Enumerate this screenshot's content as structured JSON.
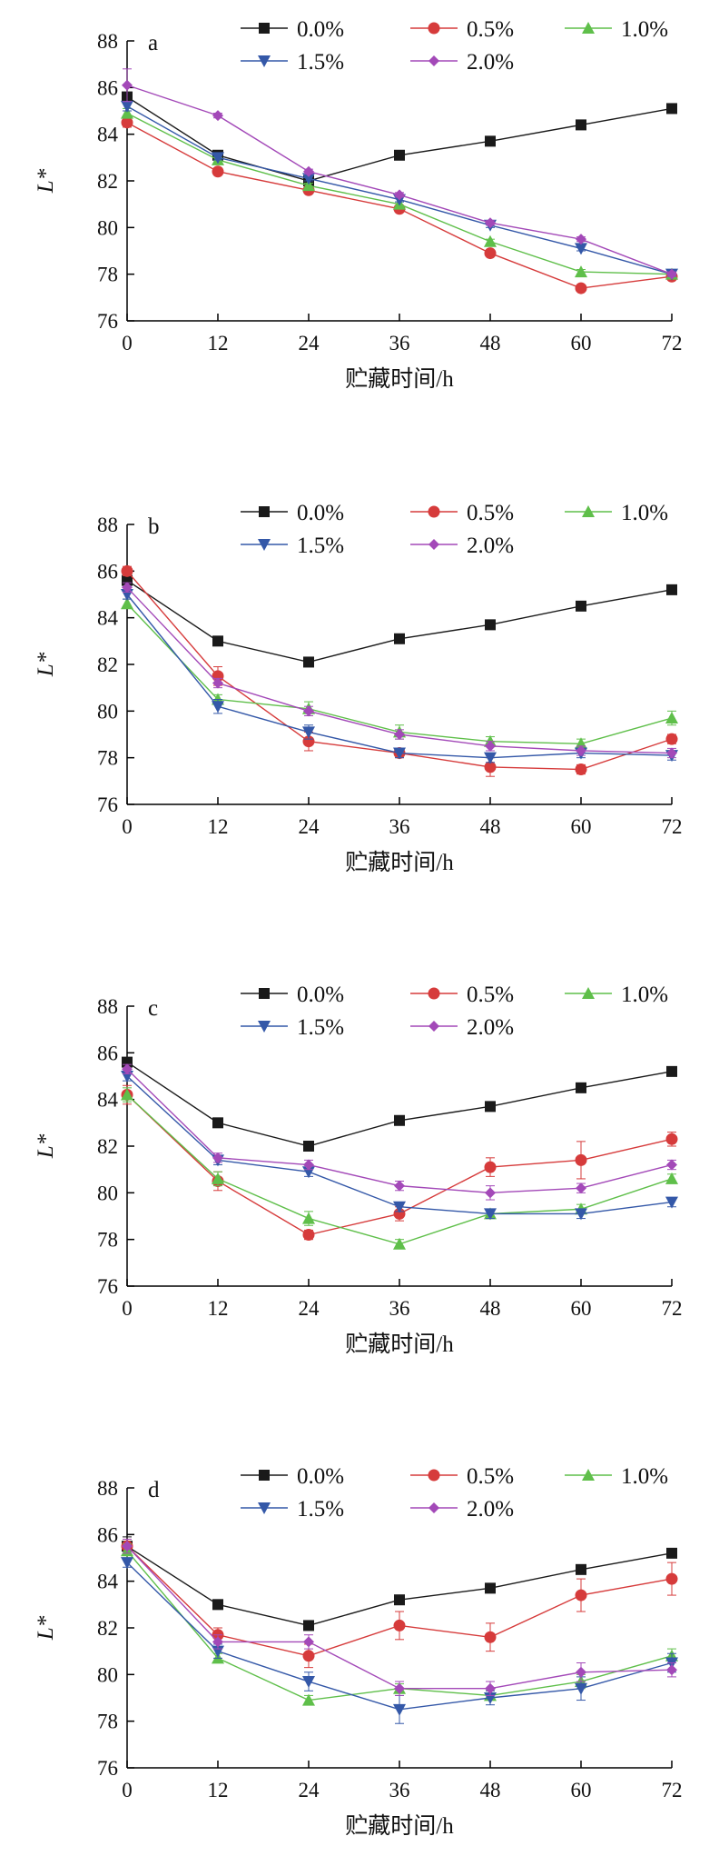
{
  "chart_data": [
    {
      "type": "line",
      "panel": "a",
      "xlabel": "贮藏时间/h",
      "ylabel": "L*",
      "x": [
        0,
        12,
        24,
        36,
        48,
        60,
        72
      ],
      "xticks": [
        "0",
        "12",
        "24",
        "36",
        "48",
        "60",
        "72"
      ],
      "yticks": [
        "76",
        "78",
        "80",
        "82",
        "84",
        "86",
        "88"
      ],
      "xlim": [
        0,
        72
      ],
      "ylim": [
        76,
        88
      ],
      "legend": "top",
      "series": [
        {
          "name": "0.0%",
          "color": "#1a1a1a",
          "marker": "square",
          "values": [
            85.6,
            83.1,
            82.0,
            83.1,
            83.7,
            84.4,
            85.1
          ],
          "errors": [
            0.2,
            0.1,
            0.1,
            0.1,
            0.1,
            0.1,
            0.1
          ]
        },
        {
          "name": "0.5%",
          "color": "#d63b3b",
          "marker": "circle",
          "values": [
            84.5,
            82.4,
            81.6,
            80.8,
            78.9,
            77.4,
            77.9
          ],
          "errors": [
            0.2,
            0.1,
            0.1,
            0.1,
            0.1,
            0.1,
            0.1
          ]
        },
        {
          "name": "1.0%",
          "color": "#5fbf4a",
          "marker": "triangle-up",
          "values": [
            84.9,
            82.9,
            81.8,
            81.0,
            79.4,
            78.1,
            78.0
          ],
          "errors": [
            0.2,
            0.1,
            0.1,
            0.1,
            0.1,
            0.1,
            0.1
          ]
        },
        {
          "name": "1.5%",
          "color": "#3458a8",
          "marker": "triangle-down",
          "values": [
            85.2,
            83.0,
            82.1,
            81.2,
            80.1,
            79.1,
            78.0
          ],
          "errors": [
            0.2,
            0.1,
            0.1,
            0.1,
            0.1,
            0.1,
            0.1
          ]
        },
        {
          "name": "2.0%",
          "color": "#a349b8",
          "marker": "diamond",
          "values": [
            86.1,
            84.8,
            82.4,
            81.4,
            80.2,
            79.5,
            78.0
          ],
          "errors": [
            0.7,
            0.1,
            0.1,
            0.1,
            0.1,
            0.1,
            0.1
          ]
        }
      ]
    },
    {
      "type": "line",
      "panel": "b",
      "xlabel": "贮藏时间/h",
      "ylabel": "L*",
      "x": [
        0,
        12,
        24,
        36,
        48,
        60,
        72
      ],
      "xticks": [
        "0",
        "12",
        "24",
        "36",
        "48",
        "60",
        "72"
      ],
      "yticks": [
        "76",
        "78",
        "80",
        "82",
        "84",
        "86",
        "88"
      ],
      "xlim": [
        0,
        72
      ],
      "ylim": [
        76,
        88
      ],
      "legend": "top",
      "series": [
        {
          "name": "0.0%",
          "color": "#1a1a1a",
          "marker": "square",
          "values": [
            85.6,
            83.0,
            82.1,
            83.1,
            83.7,
            84.5,
            85.2
          ],
          "errors": [
            0.2,
            0.1,
            0.1,
            0.1,
            0.1,
            0.1,
            0.1
          ]
        },
        {
          "name": "0.5%",
          "color": "#d63b3b",
          "marker": "circle",
          "values": [
            86.0,
            81.5,
            78.7,
            78.2,
            77.6,
            77.5,
            78.8
          ],
          "errors": [
            0.2,
            0.4,
            0.4,
            0.2,
            0.4,
            0.2,
            0.2
          ]
        },
        {
          "name": "1.0%",
          "color": "#5fbf4a",
          "marker": "triangle-up",
          "values": [
            84.6,
            80.5,
            80.1,
            79.1,
            78.7,
            78.6,
            79.7
          ],
          "errors": [
            0.2,
            0.2,
            0.3,
            0.3,
            0.2,
            0.2,
            0.3
          ]
        },
        {
          "name": "1.5%",
          "color": "#3458a8",
          "marker": "triangle-down",
          "values": [
            85.0,
            80.2,
            79.1,
            78.2,
            78.0,
            78.2,
            78.1
          ],
          "errors": [
            0.2,
            0.3,
            0.3,
            0.2,
            0.2,
            0.2,
            0.2
          ]
        },
        {
          "name": "2.0%",
          "color": "#a349b8",
          "marker": "diamond",
          "values": [
            85.3,
            81.2,
            80.0,
            79.0,
            78.5,
            78.3,
            78.2
          ],
          "errors": [
            0.2,
            0.2,
            0.2,
            0.2,
            0.2,
            0.2,
            0.2
          ]
        }
      ]
    },
    {
      "type": "line",
      "panel": "c",
      "xlabel": "贮藏时间/h",
      "ylabel": "L*",
      "x": [
        0,
        12,
        24,
        36,
        48,
        60,
        72
      ],
      "xticks": [
        "0",
        "12",
        "24",
        "36",
        "48",
        "60",
        "72"
      ],
      "yticks": [
        "76",
        "78",
        "80",
        "82",
        "84",
        "86",
        "88"
      ],
      "xlim": [
        0,
        72
      ],
      "ylim": [
        76,
        88
      ],
      "legend": "top",
      "series": [
        {
          "name": "0.0%",
          "color": "#1a1a1a",
          "marker": "square",
          "values": [
            85.6,
            83.0,
            82.0,
            83.1,
            83.7,
            84.5,
            85.2
          ],
          "errors": [
            0.2,
            0.1,
            0.1,
            0.1,
            0.1,
            0.1,
            0.1
          ]
        },
        {
          "name": "0.5%",
          "color": "#d63b3b",
          "marker": "circle",
          "values": [
            84.2,
            80.5,
            78.2,
            79.1,
            81.1,
            81.4,
            82.3
          ],
          "errors": [
            0.4,
            0.4,
            0.2,
            0.3,
            0.4,
            0.8,
            0.3
          ]
        },
        {
          "name": "1.0%",
          "color": "#5fbf4a",
          "marker": "triangle-up",
          "values": [
            84.2,
            80.6,
            78.9,
            77.8,
            79.1,
            79.3,
            80.6
          ],
          "errors": [
            0.3,
            0.3,
            0.3,
            0.2,
            0.2,
            0.2,
            0.2
          ]
        },
        {
          "name": "1.5%",
          "color": "#3458a8",
          "marker": "triangle-down",
          "values": [
            85.0,
            81.4,
            80.9,
            79.4,
            79.1,
            79.1,
            79.6
          ],
          "errors": [
            0.2,
            0.2,
            0.2,
            0.2,
            0.2,
            0.2,
            0.2
          ]
        },
        {
          "name": "2.0%",
          "color": "#a349b8",
          "marker": "diamond",
          "values": [
            85.3,
            81.5,
            81.2,
            80.3,
            80.0,
            80.2,
            81.2
          ],
          "errors": [
            0.2,
            0.2,
            0.2,
            0.2,
            0.3,
            0.2,
            0.2
          ]
        }
      ]
    },
    {
      "type": "line",
      "panel": "d",
      "xlabel": "贮藏时间/h",
      "ylabel": "L*",
      "x": [
        0,
        12,
        24,
        36,
        48,
        60,
        72
      ],
      "xticks": [
        "0",
        "12",
        "24",
        "36",
        "48",
        "60",
        "72"
      ],
      "yticks": [
        "76",
        "78",
        "80",
        "82",
        "84",
        "86",
        "88"
      ],
      "xlim": [
        0,
        72
      ],
      "ylim": [
        76,
        88
      ],
      "legend": "top",
      "series": [
        {
          "name": "0.0%",
          "color": "#1a1a1a",
          "marker": "square",
          "values": [
            85.5,
            83.0,
            82.1,
            83.2,
            83.7,
            84.5,
            85.2
          ],
          "errors": [
            0.4,
            0.1,
            0.1,
            0.1,
            0.1,
            0.2,
            0.1
          ]
        },
        {
          "name": "0.5%",
          "color": "#d63b3b",
          "marker": "circle",
          "values": [
            85.5,
            81.7,
            80.8,
            82.1,
            81.6,
            83.4,
            84.1
          ],
          "errors": [
            0.3,
            0.3,
            0.5,
            0.6,
            0.6,
            0.7,
            0.7
          ]
        },
        {
          "name": "1.0%",
          "color": "#5fbf4a",
          "marker": "triangle-up",
          "values": [
            85.3,
            80.7,
            78.9,
            79.4,
            79.1,
            79.7,
            80.8
          ],
          "errors": [
            0.3,
            0.2,
            0.2,
            0.2,
            0.2,
            0.3,
            0.3
          ]
        },
        {
          "name": "1.5%",
          "color": "#3458a8",
          "marker": "triangle-down",
          "values": [
            84.8,
            81.0,
            79.7,
            78.5,
            79.0,
            79.4,
            80.5
          ],
          "errors": [
            0.2,
            0.3,
            0.4,
            0.6,
            0.3,
            0.5,
            0.4
          ]
        },
        {
          "name": "2.0%",
          "color": "#a349b8",
          "marker": "diamond",
          "values": [
            85.5,
            81.4,
            81.4,
            79.4,
            79.4,
            80.1,
            80.2
          ],
          "errors": [
            0.3,
            0.3,
            0.3,
            0.3,
            0.3,
            0.4,
            0.3
          ]
        }
      ]
    }
  ]
}
